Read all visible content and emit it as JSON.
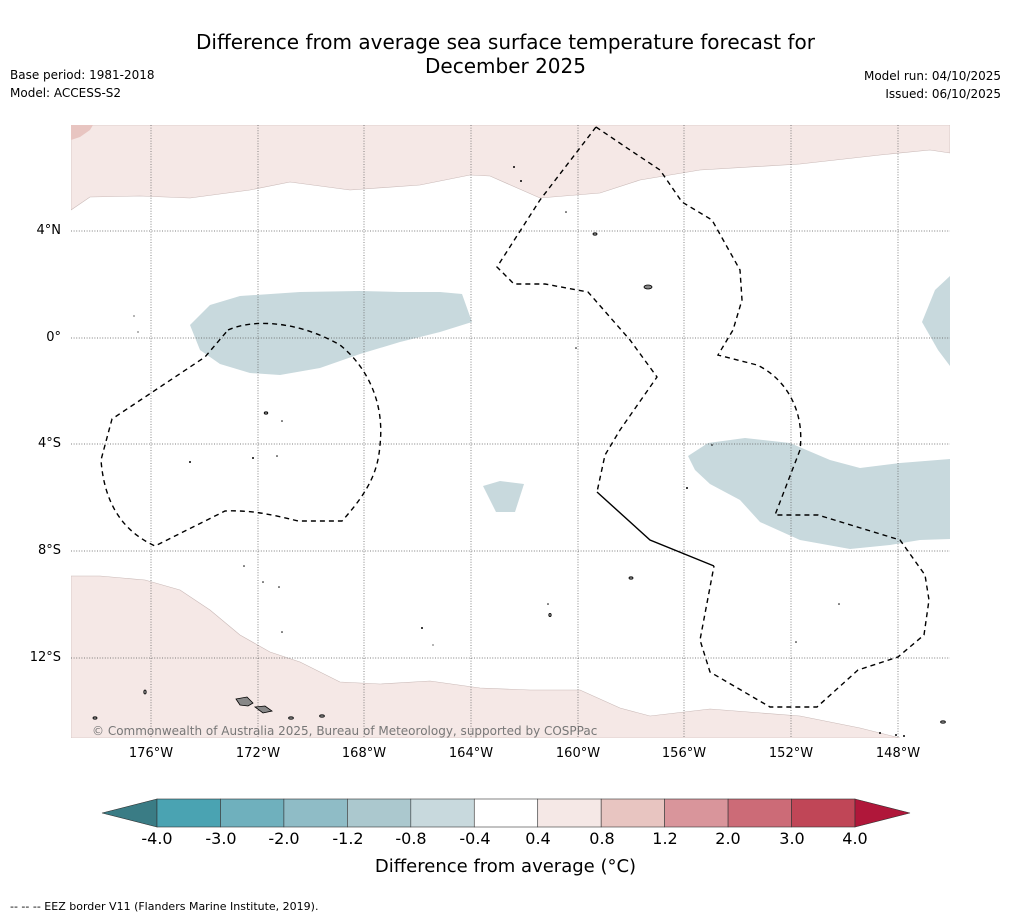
{
  "title": {
    "line1": "Difference from average sea surface temperature forecast for",
    "line2": "December 2025"
  },
  "meta_left": {
    "base_period": "Base period: 1981-2018",
    "model": "Model: ACCESS-S2"
  },
  "meta_right": {
    "model_run": "Model run: 04/10/2025",
    "issued": "Issued: 06/10/2025"
  },
  "map": {
    "lat_labels": [
      "4°N",
      "0°",
      "4°S",
      "8°S",
      "12°S"
    ],
    "lon_labels": [
      "176°W",
      "172°W",
      "168°W",
      "164°W",
      "160°W",
      "156°W",
      "152°W",
      "148°W"
    ],
    "copyright": "© Commonwealth of Australia 2025, Bureau of Meteorology, supported by COSPPac"
  },
  "colorbar": {
    "ticks": [
      "-4.0",
      "-3.0",
      "-2.0",
      "-1.2",
      "-0.8",
      "-0.4",
      "0.4",
      "0.8",
      "1.2",
      "2.0",
      "3.0",
      "4.0"
    ],
    "colors": [
      "#4aa3b2",
      "#6fb0bd",
      "#8fbcc6",
      "#abc8ce",
      "#c8d9dd",
      "#ffffff",
      "#f5e8e6",
      "#e8c5c1",
      "#d9959b",
      "#cc6b77",
      "#c04657"
    ],
    "under_color": "#3a7c85",
    "over_color": "#b0173a",
    "label": "Difference from average (°C)"
  },
  "footnote": "--  --  -- EEZ border V11 (Flanders Marine Institute, 2019)."
}
